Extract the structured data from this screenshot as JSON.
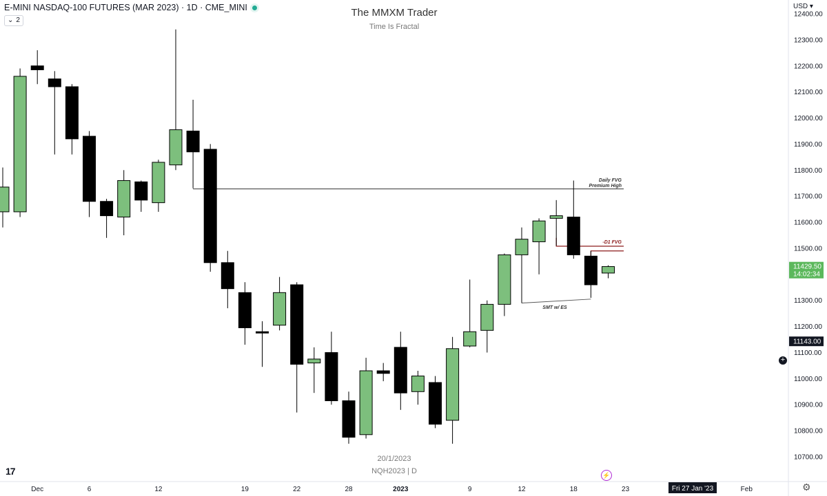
{
  "header": {
    "symbol_title": "E-MINI NASDAQ-100 FUTURES (MAR 2023) · 1D · CME_MINI",
    "collapse_count": "2",
    "currency": "USD"
  },
  "watermark": {
    "title": "The MMXM Trader",
    "subtitle": "Time Is Fractal"
  },
  "center_info": {
    "date": "20/1/2023",
    "symbol": "NQH2023 | D"
  },
  "icons": {
    "logo": "tradingview-logo-icon",
    "bolt": "lightning-bolt-icon",
    "settings": "gear-icon",
    "plus": "plus-circle-icon",
    "caret": "caret-down-icon"
  },
  "colors": {
    "bull": "#7dbf7d",
    "bear": "#000000",
    "last_price_bg": "#5cb85c",
    "crosshair_bg": "#131722",
    "fvg_line": "#8b1a1a",
    "premium_line": "#333333",
    "date_label_bg": "#131722"
  },
  "chart_data": {
    "type": "candlestick",
    "y_axis": {
      "range": [
        10640,
        12420
      ],
      "ticks": [
        10700,
        10800,
        10900,
        11000,
        11100,
        11200,
        11300,
        11400,
        11500,
        11600,
        11700,
        11800,
        11900,
        12000,
        12100,
        12200,
        12300,
        12400
      ],
      "tick_labels": [
        "10700.00",
        "10800.00",
        "10900.00",
        "11000.00",
        "11100.00",
        "11200.00",
        "11300.00",
        "11400.00",
        "11500.00",
        "11600.00",
        "11700.00",
        "11800.00",
        "11900.00",
        "12000.00",
        "12100.00",
        "12200.00",
        "12300.00",
        "12400.00"
      ]
    },
    "x_axis": {
      "labels": [
        {
          "text": "Dec",
          "index": 2
        },
        {
          "text": "6",
          "index": 5
        },
        {
          "text": "12",
          "index": 9
        },
        {
          "text": "19",
          "index": 14
        },
        {
          "text": "22",
          "index": 17
        },
        {
          "text": "28",
          "index": 20
        },
        {
          "text": "2023",
          "index": 23,
          "bold": true
        },
        {
          "text": "9",
          "index": 27
        },
        {
          "text": "12",
          "index": 30
        },
        {
          "text": "18",
          "index": 33
        },
        {
          "text": "23",
          "index": 36
        },
        {
          "text": "Feb",
          "index": 43
        }
      ]
    },
    "candles": [
      {
        "o": 11640,
        "h": 11810,
        "l": 11580,
        "c": 11735
      },
      {
        "o": 11640,
        "h": 12190,
        "l": 11620,
        "c": 12160
      },
      {
        "o": 12200,
        "h": 12260,
        "l": 12130,
        "c": 12185
      },
      {
        "o": 12150,
        "h": 12180,
        "l": 11860,
        "c": 12120
      },
      {
        "o": 12120,
        "h": 12130,
        "l": 11860,
        "c": 11920
      },
      {
        "o": 11930,
        "h": 11950,
        "l": 11620,
        "c": 11680
      },
      {
        "o": 11680,
        "h": 11690,
        "l": 11540,
        "c": 11625
      },
      {
        "o": 11620,
        "h": 11800,
        "l": 11550,
        "c": 11760
      },
      {
        "o": 11755,
        "h": 11760,
        "l": 11640,
        "c": 11685
      },
      {
        "o": 11675,
        "h": 11840,
        "l": 11640,
        "c": 11830
      },
      {
        "o": 11820,
        "h": 12340,
        "l": 11800,
        "c": 11955
      },
      {
        "o": 11950,
        "h": 12070,
        "l": 11730,
        "c": 11870
      },
      {
        "o": 11880,
        "h": 11900,
        "l": 11410,
        "c": 11445
      },
      {
        "o": 11445,
        "h": 11490,
        "l": 11270,
        "c": 11345
      },
      {
        "o": 11330,
        "h": 11370,
        "l": 11130,
        "c": 11195
      },
      {
        "o": 11180,
        "h": 11220,
        "l": 11045,
        "c": 11175
      },
      {
        "o": 11205,
        "h": 11390,
        "l": 11185,
        "c": 11330
      },
      {
        "o": 11360,
        "h": 11370,
        "l": 10870,
        "c": 11055
      },
      {
        "o": 11060,
        "h": 11120,
        "l": 10945,
        "c": 11075
      },
      {
        "o": 11100,
        "h": 11180,
        "l": 10900,
        "c": 10915
      },
      {
        "o": 10915,
        "h": 10950,
        "l": 10750,
        "c": 10775
      },
      {
        "o": 10785,
        "h": 11080,
        "l": 10770,
        "c": 11030
      },
      {
        "o": 11030,
        "h": 11060,
        "l": 10990,
        "c": 11020
      },
      {
        "o": 11120,
        "h": 11180,
        "l": 10880,
        "c": 10945
      },
      {
        "o": 10950,
        "h": 11030,
        "l": 10900,
        "c": 11010
      },
      {
        "o": 10985,
        "h": 11010,
        "l": 10810,
        "c": 10825
      },
      {
        "o": 10840,
        "h": 11160,
        "l": 10750,
        "c": 11115
      },
      {
        "o": 11125,
        "h": 11380,
        "l": 11120,
        "c": 11180
      },
      {
        "o": 11185,
        "h": 11300,
        "l": 11100,
        "c": 11285
      },
      {
        "o": 11285,
        "h": 11480,
        "l": 11240,
        "c": 11475
      },
      {
        "o": 11475,
        "h": 11580,
        "l": 11290,
        "c": 11535
      },
      {
        "o": 11525,
        "h": 11615,
        "l": 11400,
        "c": 11605
      },
      {
        "o": 11615,
        "h": 11685,
        "l": 11510,
        "c": 11625
      },
      {
        "o": 11620,
        "h": 11760,
        "l": 11460,
        "c": 11475
      },
      {
        "o": 11470,
        "h": 11490,
        "l": 11310,
        "c": 11360
      },
      {
        "o": 11405,
        "h": 11435,
        "l": 11385,
        "c": 11430
      }
    ],
    "annotations": [
      {
        "text": "Daily FVG",
        "type": "label"
      },
      {
        "text": "Premium High",
        "type": "label",
        "level": 11728
      },
      {
        "text": "-D1 FVG",
        "type": "label",
        "levels": [
          11508,
          11490
        ]
      },
      {
        "text": "SMT w/ ES",
        "type": "label"
      }
    ],
    "price_labels": [
      {
        "price": "11429.50",
        "timer": "14:02:34",
        "value": 11429.5,
        "kind": "last"
      },
      {
        "price": "11143.00",
        "value": 11143,
        "kind": "crosshair"
      }
    ],
    "date_label": "Fri 27 Jan '23"
  }
}
